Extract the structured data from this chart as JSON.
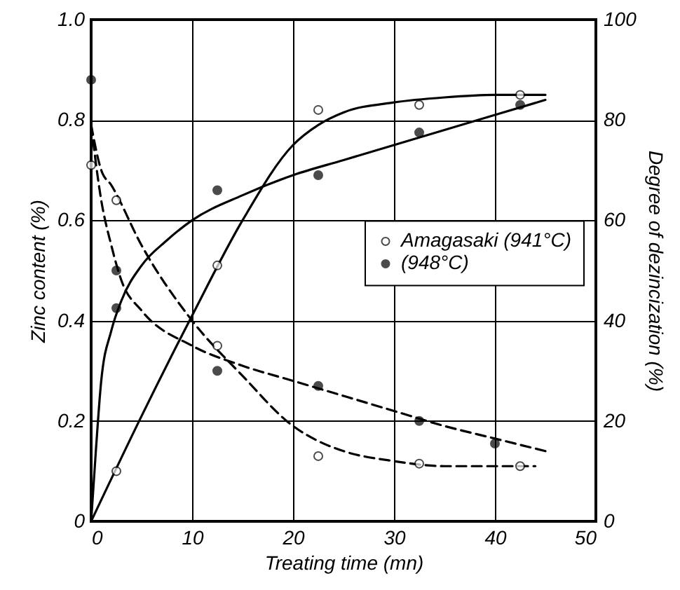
{
  "chart_data": {
    "type": "line",
    "xlabel": "Treating time (mn)",
    "ylabel": "Zinc content (%)",
    "y2label": "Degree of dezincization (%)",
    "xlim": [
      0,
      50
    ],
    "xticks": [
      0,
      10,
      20,
      30,
      40,
      50
    ],
    "ylim": [
      0,
      1
    ],
    "yticks": [
      0,
      0.2,
      0.4,
      0.6,
      0.8,
      {
        "value": 1,
        "label": "1.0"
      }
    ],
    "y2lim": [
      0,
      100
    ],
    "y2ticks": [
      0,
      20,
      40,
      60,
      80,
      100
    ],
    "grid": true,
    "legend": "right",
    "series": [
      {
        "name": "Amagasaki (941°C)",
        "type": "scatter",
        "marker": "circle",
        "color": "#ffffff",
        "x": [
          0,
          2.5,
          12.5,
          22.5,
          32.5,
          42.5
        ],
        "values": [
          0.71,
          0.64,
          0.35,
          0.13,
          0.115,
          0.11
        ]
      },
      {
        "name": "(948°C)",
        "type": "scatter",
        "marker": "circle",
        "color": "#000000",
        "x": [
          0,
          2.5,
          12.5,
          22.5,
          32.5,
          40
        ],
        "values": [
          0.88,
          0.5,
          0.3,
          0.27,
          0.2,
          0.155
        ]
      },
      {
        "type": "scatter",
        "marker": "circle",
        "color": "#ffffff",
        "axis": "y2",
        "x": [
          2.5,
          12.5,
          22.5,
          32.5,
          42.5
        ],
        "values": [
          10,
          51,
          82,
          83,
          85
        ]
      },
      {
        "type": "scatter",
        "marker": "circle",
        "color": "#000000",
        "axis": "y2",
        "x": [
          2.5,
          12.5,
          22.5,
          32.5,
          42.5
        ],
        "values": [
          42.5,
          66,
          69,
          77.5,
          83
        ]
      },
      {
        "type": "line",
        "line_style": "dashed",
        "color": "#000000",
        "x": [
          0,
          1,
          2,
          5,
          10,
          15,
          20,
          22.5,
          25,
          30,
          35,
          40,
          44
        ],
        "values": [
          0.79,
          0.7,
          0.67,
          0.55,
          0.4,
          0.29,
          0.19,
          0.16,
          0.14,
          0.12,
          0.11,
          0.11,
          0.11
        ]
      },
      {
        "type": "line",
        "line_style": "dashed",
        "color": "#000000",
        "x": [
          0,
          1,
          2,
          3,
          5,
          10,
          15,
          20,
          25,
          30,
          35,
          40,
          45
        ],
        "values": [
          0.79,
          0.64,
          0.55,
          0.48,
          0.42,
          0.35,
          0.31,
          0.28,
          0.25,
          0.22,
          0.19,
          0.165,
          0.14
        ]
      },
      {
        "type": "line",
        "line_style": "solid",
        "color": "#000000",
        "axis": "y2",
        "x": [
          0,
          5,
          10,
          15,
          20,
          22.5,
          25,
          30,
          35,
          40,
          45
        ],
        "values": [
          0,
          21,
          41,
          60,
          75,
          79,
          81.5,
          83.5,
          84.5,
          85,
          85
        ]
      },
      {
        "type": "line",
        "line_style": "solid",
        "color": "#000000",
        "axis": "y2",
        "x": [
          0,
          0.5,
          1,
          2,
          3,
          5,
          7.5,
          10,
          15,
          20,
          25,
          30,
          35,
          40,
          45
        ],
        "values": [
          0,
          15,
          28,
          38,
          44,
          51,
          56,
          60,
          65,
          69,
          72,
          75,
          78,
          81,
          84
        ]
      }
    ]
  }
}
